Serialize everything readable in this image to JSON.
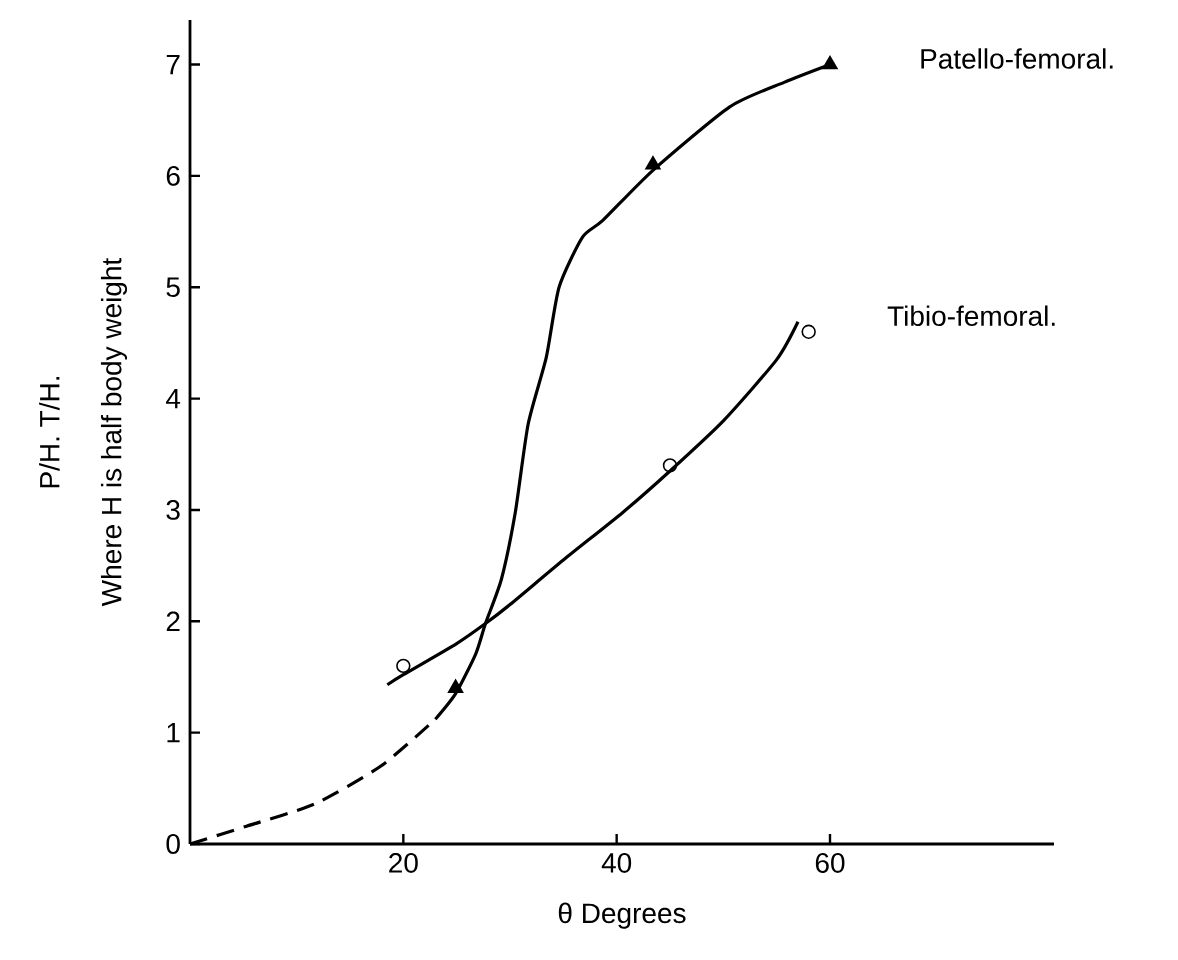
{
  "chart_data": {
    "type": "line",
    "xlabel": "θ Degrees",
    "ylabel": "P/H.   T/H.",
    "annotations": [
      "Where H is half body weight"
    ],
    "xlim": [
      0,
      81
    ],
    "ylim": [
      0,
      7.4
    ],
    "xticks": [
      20,
      40,
      60
    ],
    "yticks": [
      0,
      1,
      2,
      3,
      4,
      5,
      6,
      7
    ],
    "grid": false,
    "series": [
      {
        "line_style": "dashed",
        "color": "#000000",
        "x": [
          0,
          5.3,
          11.7,
          17.9,
          23
        ],
        "values": [
          0,
          0.16,
          0.36,
          0.7,
          1.12
        ]
      },
      {
        "name": "Patello-femoral.",
        "line_style": "solid",
        "color": "#000000",
        "x": [
          23,
          24.9,
          26.8,
          27.7,
          29.2,
          30.5,
          31.7,
          33.4,
          34.6,
          36.8,
          38.7,
          43.4,
          50.6,
          55.7,
          60
        ],
        "values": [
          1.12,
          1.35,
          1.71,
          1.98,
          2.38,
          2.98,
          3.77,
          4.37,
          5.0,
          5.45,
          5.6,
          6.05,
          6.62,
          6.84,
          7.0
        ]
      },
      {
        "type": "scatter",
        "marker": "triangle",
        "color": "#000000",
        "x": [
          24.9,
          43.4,
          60
        ],
        "values": [
          1.4,
          6.1,
          7.0
        ]
      },
      {
        "name": "Tibio-femoral.",
        "line_style": "solid",
        "color": "#000000",
        "x": [
          18.5,
          20,
          25,
          27.7,
          30,
          35,
          40.6,
          45,
          50,
          55,
          57
        ],
        "values": [
          1.43,
          1.52,
          1.8,
          1.98,
          2.15,
          2.55,
          2.98,
          3.35,
          3.8,
          4.35,
          4.69
        ]
      },
      {
        "type": "scatter",
        "marker": "circle",
        "color": "#000000",
        "x": [
          20,
          45,
          58
        ],
        "values": [
          1.6,
          3.4,
          4.6
        ]
      }
    ]
  }
}
